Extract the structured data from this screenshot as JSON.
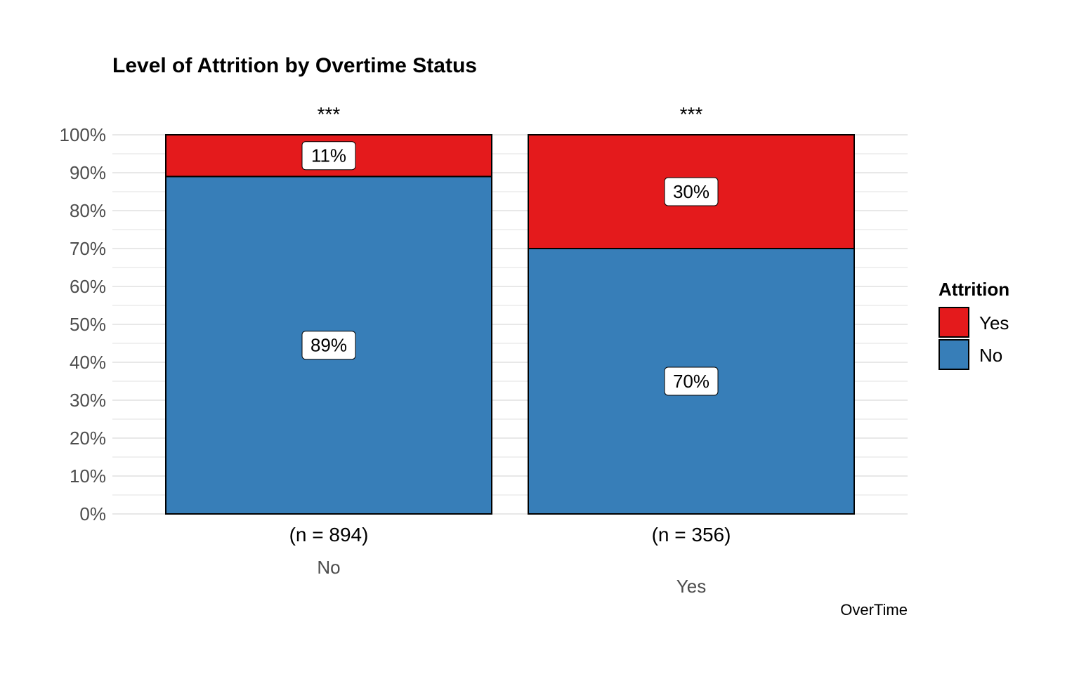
{
  "chart_data": {
    "type": "bar",
    "stacked": true,
    "title": "Level of Attrition by Overtime Status",
    "xlabel": "OverTime",
    "ylabel": "",
    "ylim": [
      0,
      100
    ],
    "y_ticks": [
      "0%",
      "10%",
      "20%",
      "30%",
      "40%",
      "50%",
      "60%",
      "70%",
      "80%",
      "90%",
      "100%"
    ],
    "categories": [
      "No",
      "Yes"
    ],
    "counts": [
      "(n = 894)",
      "(n = 356)"
    ],
    "significance": [
      "***",
      "***"
    ],
    "series": [
      {
        "name": "No",
        "color": "#377EB8",
        "values": [
          89,
          70
        ],
        "labels": [
          "89%",
          "70%"
        ]
      },
      {
        "name": "Yes",
        "color": "#E41A1C",
        "values": [
          11,
          30
        ],
        "labels": [
          "11%",
          "30%"
        ]
      }
    ],
    "legend": {
      "title": "Attrition",
      "position": "right",
      "items": [
        {
          "label": "Yes",
          "color": "#E41A1C"
        },
        {
          "label": "No",
          "color": "#377EB8"
        }
      ]
    },
    "grid": true
  }
}
